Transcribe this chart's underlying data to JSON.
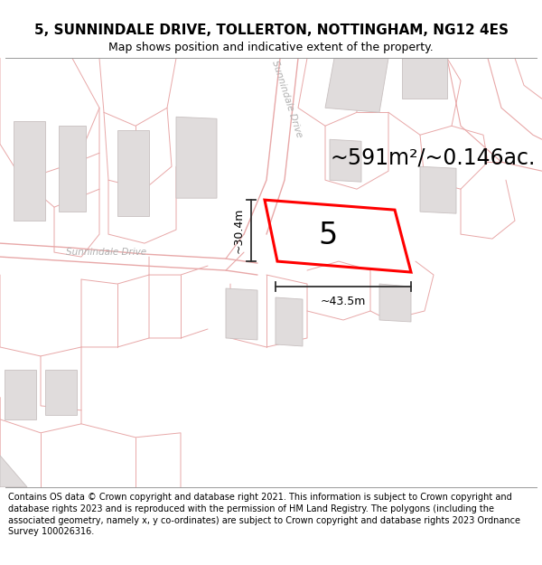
{
  "title_line1": "5, SUNNINDALE DRIVE, TOLLERTON, NOTTINGHAM, NG12 4ES",
  "title_line2": "Map shows position and indicative extent of the property.",
  "footer_text": "Contains OS data © Crown copyright and database right 2021. This information is subject to Crown copyright and database rights 2023 and is reproduced with the permission of HM Land Registry. The polygons (including the associated geometry, namely x, y co-ordinates) are subject to Crown copyright and database rights 2023 Ordnance Survey 100026316.",
  "area_text": "~591m²/~0.146ac.",
  "label_number": "5",
  "dim_width": "~43.5m",
  "dim_height": "~30.4m",
  "road_label_horiz": "Sunnindale Drive",
  "road_label_diag": "Sunnindale Drive",
  "map_bg": "#f9f6f6",
  "building_color": "#e0dcdc",
  "building_edge": "#c8c0c0",
  "road_line_color": "#e8a8a8",
  "property_outline_color": "#ff0000",
  "dim_line_color": "#303030",
  "title_fontsize": 11,
  "subtitle_fontsize": 9,
  "footer_fontsize": 7.0,
  "area_fontsize": 17,
  "number_fontsize": 24,
  "road_fontsize": 8,
  "dim_fontsize": 9
}
